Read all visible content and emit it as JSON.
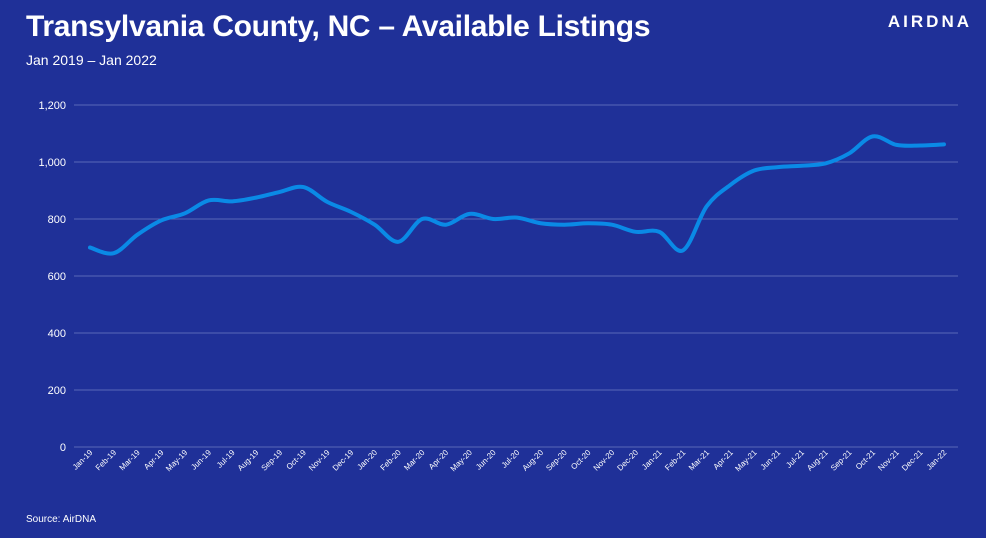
{
  "header": {
    "title": "Transylvania County, NC – Available Listings",
    "subtitle": "Jan 2019 – Jan 2022",
    "logo": "AIRDNA"
  },
  "footer": {
    "source": "Source: AirDNA"
  },
  "colors": {
    "background": "#1f3098",
    "line": "#0a8ae6",
    "grid": "#5a68b8"
  },
  "chart_data": {
    "type": "line",
    "title": "Transylvania County, NC – Available Listings",
    "subtitle": "Jan 2019 – Jan 2022",
    "xlabel": "",
    "ylabel": "",
    "ylim": [
      0,
      1200
    ],
    "yticks": [
      "0",
      "200",
      "400",
      "600",
      "800",
      "1,000",
      "1,200"
    ],
    "ytick_values": [
      0,
      200,
      400,
      600,
      800,
      1000,
      1200
    ],
    "grid": true,
    "categories": [
      "Jan-19",
      "Feb-19",
      "Mar-19",
      "Apr-19",
      "May-19",
      "Jun-19",
      "Jul-19",
      "Aug-19",
      "Sep-19",
      "Oct-19",
      "Nov-19",
      "Dec-19",
      "Jan-20",
      "Feb-20",
      "Mar-20",
      "Apr-20",
      "May-20",
      "Jun-20",
      "Jul-20",
      "Aug-20",
      "Sep-20",
      "Oct-20",
      "Nov-20",
      "Dec-20",
      "Jan-21",
      "Feb-21",
      "Mar-21",
      "Apr-21",
      "May-21",
      "Jun-21",
      "Jul-21",
      "Aug-21",
      "Sep-21",
      "Oct-21",
      "Nov-21",
      "Dec-21",
      "Jan-22"
    ],
    "series": [
      {
        "values": [
          700,
          680,
          745,
          795,
          820,
          865,
          862,
          875,
          895,
          912,
          860,
          825,
          780,
          720,
          800,
          780,
          818,
          800,
          805,
          785,
          780,
          785,
          780,
          755,
          755,
          690,
          845,
          920,
          970,
          982,
          987,
          995,
          1030,
          1090,
          1060,
          1058,
          1062
        ]
      }
    ]
  }
}
